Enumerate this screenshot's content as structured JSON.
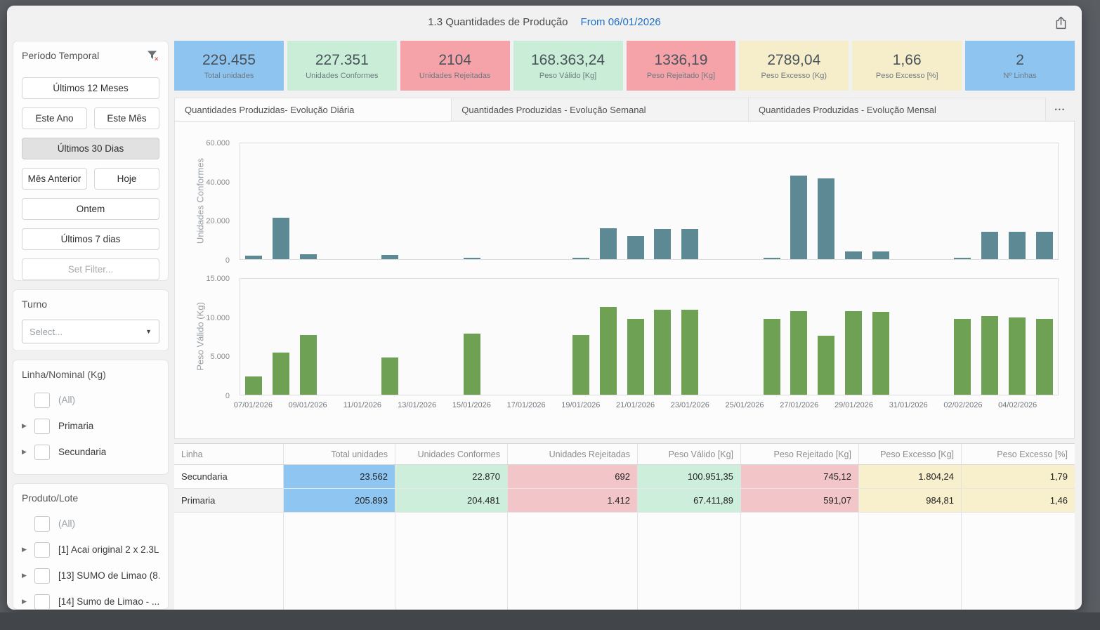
{
  "window": {
    "title": "1.3 Quantidades de Produção",
    "date_label": "From 06/01/2026"
  },
  "icons": {
    "ellipsis": "•••",
    "caret_right": "▶",
    "caret_down": "▼"
  },
  "sidebar": {
    "periodo_temporal": {
      "title": "Período Temporal",
      "buttons": [
        {
          "label": "Últimos 12 Meses"
        },
        {
          "label": "Este Ano"
        },
        {
          "label": "Este Mês"
        },
        {
          "label": "Últimos 30 Dias",
          "selected": true
        },
        {
          "label": "Mês Anterior"
        },
        {
          "label": "Hoje"
        },
        {
          "label": "Ontem"
        },
        {
          "label": "Últimos 7 dias"
        },
        {
          "label": "Set Filter...",
          "muted": true
        }
      ]
    },
    "turno": {
      "title": "Turno",
      "select_placeholder": "Select..."
    },
    "linha_nominal": {
      "title": "Linha/Nominal (Kg)",
      "items": [
        {
          "label": "(All)",
          "expandable": false,
          "muted": true
        },
        {
          "label": "Primaria",
          "expandable": true
        },
        {
          "label": "Secundaria",
          "expandable": true
        }
      ]
    },
    "produto_lote": {
      "title": "Produto/Lote",
      "items": [
        {
          "label": "(All)",
          "expandable": false,
          "muted": true
        },
        {
          "label": "[1] Acai original 2 x 2.3L",
          "expandable": true
        },
        {
          "label": "[13] SUMO de Limao (8...",
          "expandable": true
        },
        {
          "label": "[14] Sumo de Limao - ...",
          "expandable": true
        }
      ]
    }
  },
  "kpis": [
    {
      "value": "229.455",
      "label": "Total unidades",
      "color": "#8ec4f0"
    },
    {
      "value": "227.351",
      "label": "Unidades Conformes",
      "color": "#c9edd6"
    },
    {
      "value": "2104",
      "label": "Unidades Rejeitadas",
      "color": "#f5a3a9"
    },
    {
      "value": "168.363,24",
      "label": "Peso Válido [Kg]",
      "color": "#c9edd6"
    },
    {
      "value": "1336,19",
      "label": "Peso Rejeitado [Kg]",
      "color": "#f5a3a9"
    },
    {
      "value": "2789,04",
      "label": "Peso Excesso (Kg)",
      "color": "#f6eeca"
    },
    {
      "value": "1,66",
      "label": "Peso Excesso [%]",
      "color": "#f6eeca"
    },
    {
      "value": "2",
      "label": "Nº Linhas",
      "color": "#8ec4f0"
    }
  ],
  "tabs": [
    {
      "label": "Quantidades Produzidas- Evolução Diária",
      "active": true
    },
    {
      "label": "Quantidades Produzidas - Evolução Semanal",
      "active": false
    },
    {
      "label": "Quantidades Produzidas - Evolução Mensal",
      "active": false
    }
  ],
  "chart_data": [
    {
      "type": "bar",
      "ylabel": "Unidades Conformes",
      "bar_color": "#5d8994",
      "ylim": [
        0,
        60000
      ],
      "yticks": [
        0,
        20000,
        40000,
        60000
      ],
      "ytick_labels": [
        "0",
        "20.000",
        "40.000",
        "60.000"
      ],
      "categories": [
        "07/01/2026",
        "08/01/2026",
        "09/01/2026",
        "10/01/2026",
        "11/01/2026",
        "12/01/2026",
        "13/01/2026",
        "14/01/2026",
        "15/01/2026",
        "16/01/2026",
        "17/01/2026",
        "18/01/2026",
        "19/01/2026",
        "20/01/2026",
        "21/01/2026",
        "22/01/2026",
        "23/01/2026",
        "24/01/2026",
        "25/01/2026",
        "26/01/2026",
        "27/01/2026",
        "28/01/2026",
        "29/01/2026",
        "30/01/2026",
        "31/01/2026",
        "01/02/2026",
        "02/02/2026",
        "03/02/2026",
        "04/02/2026",
        "05/02/2026"
      ],
      "values": [
        1800,
        21400,
        2700,
        0,
        0,
        2200,
        0,
        0,
        700,
        0,
        0,
        0,
        800,
        16000,
        12000,
        15500,
        15500,
        0,
        0,
        700,
        43300,
        41900,
        4000,
        4000,
        0,
        0,
        700,
        14300,
        14200,
        14200
      ]
    },
    {
      "type": "bar",
      "ylabel": "Peso Válido (Kg)",
      "bar_color": "#6fa154",
      "ylim": [
        0,
        15000
      ],
      "yticks": [
        0,
        5000,
        10000,
        15000
      ],
      "ytick_labels": [
        "0",
        "5.000",
        "10.000",
        "15.000"
      ],
      "categories": [
        "07/01/2026",
        "08/01/2026",
        "09/01/2026",
        "10/01/2026",
        "11/01/2026",
        "12/01/2026",
        "13/01/2026",
        "14/01/2026",
        "15/01/2026",
        "16/01/2026",
        "17/01/2026",
        "18/01/2026",
        "19/01/2026",
        "20/01/2026",
        "21/01/2026",
        "22/01/2026",
        "23/01/2026",
        "24/01/2026",
        "25/01/2026",
        "26/01/2026",
        "27/01/2026",
        "28/01/2026",
        "29/01/2026",
        "30/01/2026",
        "31/01/2026",
        "01/02/2026",
        "02/02/2026",
        "03/02/2026",
        "04/02/2026",
        "05/02/2026"
      ],
      "values": [
        2350,
        5500,
        7700,
        0,
        0,
        4800,
        0,
        0,
        7900,
        0,
        0,
        0,
        7700,
        11400,
        9800,
        11000,
        11000,
        0,
        0,
        9800,
        10800,
        7600,
        10800,
        10700,
        0,
        0,
        9800,
        10200,
        10000,
        9800
      ]
    }
  ],
  "x_axis": {
    "tick_indices": [
      0,
      2,
      4,
      6,
      8,
      10,
      12,
      14,
      16,
      18,
      20,
      22,
      24,
      26,
      28
    ],
    "tick_labels": [
      "07/01/2026",
      "09/01/2026",
      "11/01/2026",
      "13/01/2026",
      "15/01/2026",
      "17/01/2026",
      "19/01/2026",
      "21/01/2026",
      "23/01/2026",
      "25/01/2026",
      "27/01/2026",
      "29/01/2026",
      "31/01/2026",
      "02/02/2026",
      "04/02/2026"
    ]
  },
  "table": {
    "columns": [
      {
        "label": "Linha",
        "align": "left",
        "bg": ""
      },
      {
        "label": "Total unidades",
        "align": "right",
        "bg": "#8fc5f1"
      },
      {
        "label": "Unidades Conformes",
        "align": "right",
        "bg": "#cdeeda"
      },
      {
        "label": "Unidades Rejeitadas",
        "align": "right",
        "bg": "#f2c6c9"
      },
      {
        "label": "Peso Válido [Kg]",
        "align": "right",
        "bg": "#cdeeda"
      },
      {
        "label": "Peso Rejeitado [Kg]",
        "align": "right",
        "bg": "#f2c6c9"
      },
      {
        "label": "Peso Excesso [Kg]",
        "align": "right",
        "bg": "#f8efcd"
      },
      {
        "label": "Peso Excesso [%]",
        "align": "right",
        "bg": "#f8efcd"
      }
    ],
    "rows": [
      {
        "cells": [
          "Secundaria",
          "23.562",
          "22.870",
          "692",
          "100.951,35",
          "745,12",
          "1.804,24",
          "1,79"
        ],
        "label_bg": "#fdfdfd"
      },
      {
        "cells": [
          "Primaria",
          "205.893",
          "204.481",
          "1.412",
          "67.411,89",
          "591,07",
          "984,81",
          "1,46"
        ],
        "label_bg": "#f3f3f3"
      }
    ]
  }
}
